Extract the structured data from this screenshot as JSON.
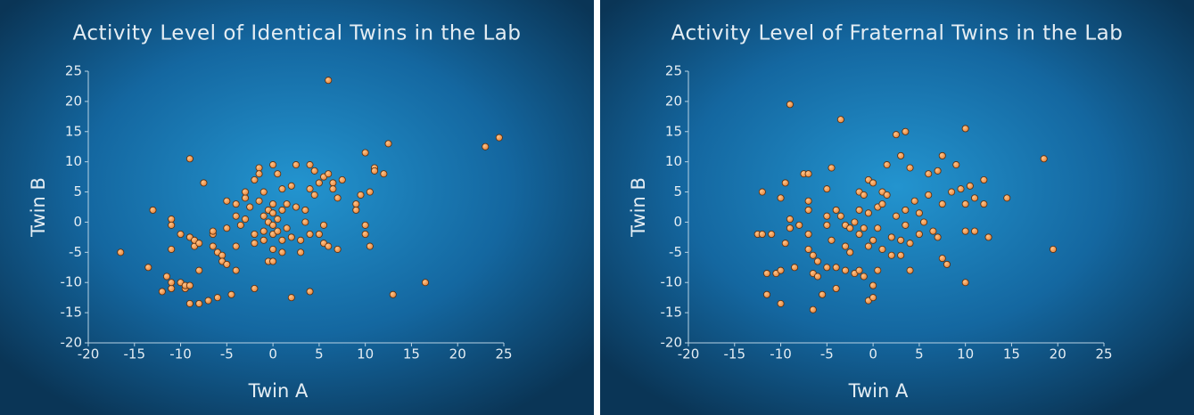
{
  "chart_data": [
    {
      "type": "scatter",
      "title": "Activity Level of Identical Twins in the Lab",
      "xlabel": "Twin A",
      "ylabel": "Twin B",
      "color": "#e6843a",
      "xlim": [
        -20,
        25
      ],
      "ylim": [
        -20,
        25
      ],
      "xticks": [
        -20,
        -15,
        -10,
        -5,
        0,
        5,
        10,
        15,
        20,
        25
      ],
      "yticks": [
        -20,
        -15,
        -10,
        -5,
        0,
        5,
        10,
        15,
        20,
        25
      ],
      "x": [
        -16.5,
        -13,
        -13.5,
        -12,
        -11.5,
        -11,
        -11,
        -11,
        -11,
        -11,
        -10,
        -10,
        -9.5,
        -9.5,
        -9,
        -9,
        -9,
        -9,
        -8.5,
        -8.5,
        -8,
        -8,
        -8,
        -7.5,
        -7,
        -6.5,
        -6.5,
        -6.5,
        -6,
        -6,
        -5.5,
        -5.5,
        -5,
        -5,
        -5,
        -4.5,
        -4,
        -4,
        -4,
        -4,
        -3.5,
        -3,
        -3,
        -3,
        -2.5,
        -2,
        -2,
        -2,
        -2,
        -1.5,
        -1.5,
        -1.5,
        -1,
        -1,
        -1,
        -1,
        -0.5,
        -0.5,
        -0.5,
        0,
        0,
        0,
        0,
        0,
        0,
        0,
        0.5,
        0.5,
        0.5,
        1,
        1,
        1,
        1,
        1.5,
        1.5,
        2,
        2,
        2,
        2.5,
        2.5,
        3,
        3,
        3.5,
        3.5,
        4,
        4,
        4,
        4,
        4.5,
        4.5,
        5,
        5,
        5.5,
        5.5,
        5.5,
        6,
        6,
        6,
        6.5,
        6.5,
        7,
        7,
        7.5,
        9,
        9,
        9.5,
        10,
        10,
        10,
        10.5,
        10.5,
        11,
        11,
        12,
        12.5,
        13,
        16.5,
        23,
        24.5
      ],
      "values": [
        -5,
        2,
        -7.5,
        -11.5,
        -9,
        -11,
        -10,
        0.5,
        -0.5,
        -4.5,
        -2,
        -10,
        -11,
        -10.5,
        -10.5,
        -2.5,
        10.5,
        -13.5,
        -4,
        -3,
        -8,
        -3.5,
        -13.5,
        6.5,
        -13,
        -2,
        -1.5,
        -4,
        -12.5,
        -5,
        -5.5,
        -6.5,
        -7,
        -1,
        3.5,
        -12,
        1,
        3,
        -4,
        -8,
        -0.5,
        4,
        5,
        0.5,
        2.5,
        7,
        -2,
        -11,
        -3.5,
        3.5,
        9,
        8,
        5,
        1,
        -1.5,
        -3,
        2,
        0,
        -6.5,
        3,
        1.5,
        -0.5,
        -2,
        -4.5,
        -6.5,
        9.5,
        8,
        0.5,
        -1.5,
        2,
        -3,
        5.5,
        -5,
        -1,
        3,
        6,
        -2.5,
        -12.5,
        9.5,
        2.5,
        -3,
        -5,
        2,
        0,
        9.5,
        5.5,
        -2,
        -11.5,
        8.5,
        4.5,
        -2,
        6.5,
        7.5,
        -0.5,
        -3.5,
        23.5,
        8,
        -4,
        6.5,
        5.5,
        4,
        -4.5,
        7,
        2,
        3,
        4.5,
        11.5,
        -0.5,
        -2,
        5,
        -4,
        9,
        8.5,
        8,
        13,
        -12,
        -10,
        12.5,
        14
      ]
    },
    {
      "type": "scatter",
      "title": "Activity Level of Fraternal Twins in the Lab",
      "xlabel": "Twin A",
      "ylabel": "Twin B",
      "color": "#e6843a",
      "xlim": [
        -20,
        25
      ],
      "ylim": [
        -20,
        25
      ],
      "xticks": [
        -20,
        -15,
        -10,
        -5,
        0,
        5,
        10,
        15,
        20,
        25
      ],
      "yticks": [
        -20,
        -15,
        -10,
        -5,
        0,
        5,
        10,
        15,
        20,
        25
      ],
      "x": [
        -12.5,
        -12,
        -12,
        -11.5,
        -11.5,
        -11,
        -10.5,
        -10,
        -10,
        -10,
        -9.5,
        -9.5,
        -9,
        -9,
        -9,
        -8.5,
        -8,
        -7.5,
        -7,
        -7,
        -7,
        -7,
        -7,
        -6.5,
        -6.5,
        -6.5,
        -6,
        -6,
        -5.5,
        -5,
        -5,
        -5,
        -5,
        -4.5,
        -4.5,
        -4,
        -4,
        -4,
        -3.5,
        -3.5,
        -3,
        -3,
        -3,
        -2.5,
        -2.5,
        -2,
        -2,
        -1.5,
        -1.5,
        -1.5,
        -1.5,
        -1,
        -1,
        -1,
        -0.5,
        -0.5,
        -0.5,
        -0.5,
        0,
        0,
        0,
        0,
        0.5,
        0.5,
        0.5,
        1,
        1,
        1,
        1.5,
        1.5,
        2,
        2,
        2.5,
        2.5,
        3,
        3,
        3,
        3.5,
        3.5,
        3.5,
        4,
        4,
        4,
        4.5,
        5,
        5,
        5.5,
        6,
        6,
        6.5,
        7,
        7,
        7.5,
        7.5,
        7.5,
        8,
        8.5,
        9,
        9.5,
        10,
        10,
        10,
        10,
        10.5,
        11,
        11,
        12,
        12,
        12.5,
        14.5,
        18.5,
        19.5
      ],
      "values": [
        -2,
        5,
        -2,
        -8.5,
        -12,
        -2,
        -8.5,
        -8,
        4,
        -13.5,
        6.5,
        -3.5,
        19.5,
        -1,
        0.5,
        -7.5,
        -0.5,
        8,
        8,
        -2,
        3.5,
        2,
        -4.5,
        -5.5,
        -8.5,
        -14.5,
        -6.5,
        -9,
        -12,
        5.5,
        1,
        -0.5,
        -7.5,
        9,
        -3,
        2,
        -11,
        -7.5,
        17,
        1,
        -0.5,
        -4,
        -8,
        -1,
        -5,
        0,
        -8.5,
        5,
        2,
        -2,
        -8,
        4.5,
        -1,
        -9,
        7,
        1.5,
        -4,
        -13,
        6.5,
        -3,
        -10.5,
        -12.5,
        2.5,
        -1,
        -8,
        5,
        3,
        -4.5,
        9.5,
        4.5,
        -2.5,
        -5.5,
        14.5,
        1,
        11,
        -3,
        -5.5,
        15,
        2,
        -0.5,
        9,
        -3.5,
        -8,
        3.5,
        1.5,
        -2,
        0,
        8,
        4.5,
        -1.5,
        8.5,
        -2.5,
        11,
        3,
        -6,
        -7,
        5,
        9.5,
        5.5,
        15.5,
        3,
        -1.5,
        -10,
        6,
        4,
        -1.5,
        7,
        3,
        -2.5,
        4,
        10.5,
        -4.5
      ]
    }
  ]
}
